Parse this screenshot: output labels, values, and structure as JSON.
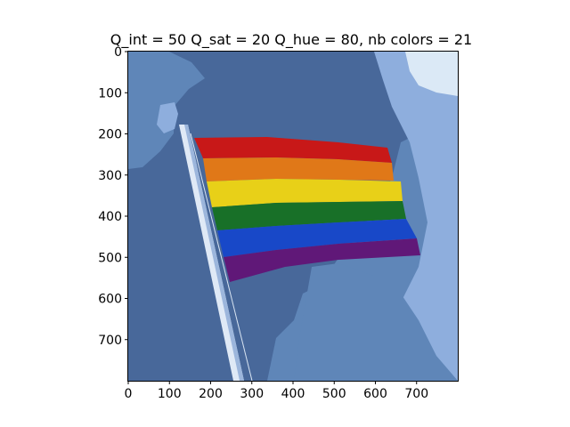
{
  "chart_data": {
    "type": "image",
    "title": "Q_int = 50 Q_sat = 20 Q_hue = 80, nb colors = 21",
    "x_ticks": [
      0,
      100,
      200,
      300,
      400,
      500,
      600,
      700
    ],
    "y_ticks": [
      0,
      100,
      200,
      300,
      400,
      500,
      600,
      700
    ],
    "xlim": [
      0,
      800
    ],
    "ylim": [
      800,
      0
    ],
    "image_extent": {
      "width": 800,
      "height": 800
    },
    "flag_stripes": [
      {
        "name": "red",
        "color": "#c81818"
      },
      {
        "name": "orange",
        "color": "#e07818"
      },
      {
        "name": "yellow",
        "color": "#e8d018"
      },
      {
        "name": "green",
        "color": "#187028"
      },
      {
        "name": "blue",
        "color": "#1848c8"
      },
      {
        "name": "purple",
        "color": "#601878"
      }
    ],
    "background_colors": {
      "sky_dark": "#48689a",
      "sky_mid": "#5f86b8",
      "sky_light": "#8eaedd",
      "sky_pale": "#dbe9f6"
    }
  }
}
